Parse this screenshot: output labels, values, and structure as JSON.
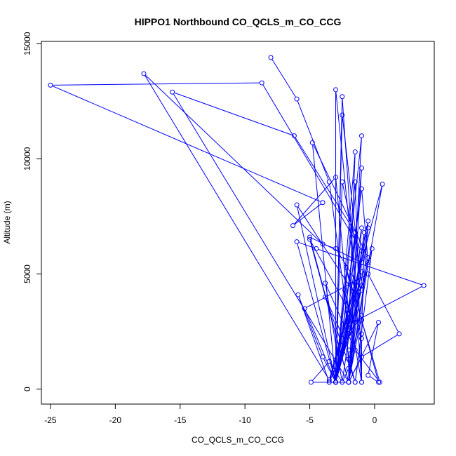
{
  "chart_data": {
    "type": "line",
    "title": "HIPPO1 Northbound CO_QCLS_m_CO_CCG",
    "xlabel": "CO_QCLS_m_CO_CCG",
    "ylabel": "Altitude (m)",
    "xlim": [
      -25.7,
      4.6
    ],
    "ylim": [
      -650,
      15100
    ],
    "x_ticks": [
      -25,
      -20,
      -15,
      -10,
      -5,
      0
    ],
    "y_ticks": [
      0,
      5000,
      10000,
      15000
    ],
    "x_tick_labels": [
      "-25",
      "-20",
      "-15",
      "-10",
      "-5",
      "0"
    ],
    "y_tick_labels": [
      "0",
      "5000",
      "10000",
      "15000"
    ],
    "series": [
      {
        "color": "#0000ff",
        "marker": "open-circle",
        "points": [
          [
            -8.0,
            14400
          ],
          [
            -6.0,
            12600
          ],
          [
            -3.5,
            9000
          ],
          [
            -2.0,
            2700
          ],
          [
            -3.0,
            300
          ],
          [
            -1.0,
            8700
          ],
          [
            -0.5,
            5500
          ],
          [
            -3.0,
            300
          ],
          [
            -2.5,
            12700
          ],
          [
            -1.0,
            300
          ],
          [
            -1.5,
            9000
          ],
          [
            -3.0,
            300
          ],
          [
            -1.0,
            11000
          ],
          [
            -2.0,
            300
          ],
          [
            -1.0,
            7000
          ],
          [
            -3.0,
            300
          ],
          [
            -3.0,
            13000
          ],
          [
            -1.5,
            4600
          ],
          [
            -3.5,
            400
          ],
          [
            -17.8,
            13700
          ],
          [
            -4.0,
            6300
          ],
          [
            -3.0,
            6100
          ],
          [
            -1.0,
            4300
          ],
          [
            -3.0,
            300
          ],
          [
            -0.5,
            7000
          ],
          [
            -2.0,
            300
          ],
          [
            -1.0,
            5500
          ],
          [
            -5.0,
            6600
          ],
          [
            -2.0,
            300
          ],
          [
            -1.0,
            6000
          ],
          [
            -8.7,
            13300
          ],
          [
            -25.0,
            13200
          ],
          [
            -4.0,
            8100
          ],
          [
            -6.3,
            7100
          ],
          [
            -3.0,
            9200
          ],
          [
            -2.0,
            3300
          ],
          [
            -3.5,
            300
          ],
          [
            0.6,
            8900
          ],
          [
            -0.5,
            5400
          ],
          [
            -2.0,
            300
          ],
          [
            -15.6,
            12900
          ],
          [
            -6.2,
            11000
          ],
          [
            -1.5,
            6800
          ],
          [
            -3.0,
            300
          ],
          [
            -2.5,
            9000
          ],
          [
            -1.0,
            5100
          ],
          [
            -3.0,
            300
          ],
          [
            -4.8,
            10700
          ],
          [
            -0.5,
            5700
          ],
          [
            -2.0,
            300
          ],
          [
            -1.0,
            9600
          ],
          [
            -2.0,
            3300
          ],
          [
            -3.0,
            300
          ],
          [
            -1.5,
            10300
          ],
          [
            -2.0,
            2600
          ],
          [
            -3.0,
            300
          ],
          [
            -2.5,
            11900
          ],
          [
            -1.0,
            4500
          ],
          [
            -3.0,
            300
          ],
          [
            -6.0,
            8000
          ],
          [
            -1.5,
            4100
          ],
          [
            -3.0,
            300
          ],
          [
            -6.0,
            6400
          ],
          [
            -4.5,
            6100
          ],
          [
            3.8,
            4500
          ],
          [
            -2.0,
            2800
          ],
          [
            -3.0,
            300
          ],
          [
            -0.5,
            7300
          ],
          [
            -1.0,
            3200
          ],
          [
            -2.0,
            300
          ],
          [
            -5.0,
            6500
          ],
          [
            -1.5,
            2900
          ],
          [
            -3.5,
            300
          ],
          [
            -5.9,
            4100
          ],
          [
            -4.0,
            1400
          ],
          [
            -3.0,
            300
          ],
          [
            -5.4,
            3500
          ],
          [
            -0.5,
            5000
          ],
          [
            1.9,
            2400
          ],
          [
            -1.0,
            1400
          ],
          [
            -2.0,
            300
          ],
          [
            0.3,
            2900
          ],
          [
            -0.5,
            600
          ],
          [
            0.3,
            300
          ],
          [
            -1.0,
            3000
          ],
          [
            -2.0,
            1300
          ],
          [
            -1.5,
            300
          ],
          [
            -3.8,
            4000
          ],
          [
            -2.0,
            1700
          ],
          [
            -2.0,
            300
          ],
          [
            -4.9,
            300
          ],
          [
            -3.5,
            1200
          ],
          [
            -2.5,
            300
          ],
          [
            -3.8,
            4600
          ],
          [
            -1.5,
            1700
          ],
          [
            0.4,
            300
          ],
          [
            -2.2,
            5300
          ],
          [
            -1.0,
            2200
          ],
          [
            -1.0,
            300
          ],
          [
            -2.3,
            4300
          ],
          [
            -2.0,
            900
          ],
          [
            -2.5,
            300
          ],
          [
            -0.8,
            6800
          ],
          [
            -1.0,
            2400
          ],
          [
            -1.5,
            300
          ],
          [
            -0.2,
            6100
          ],
          [
            -2.0,
            2400
          ],
          [
            -3.0,
            300
          ]
        ]
      }
    ]
  }
}
